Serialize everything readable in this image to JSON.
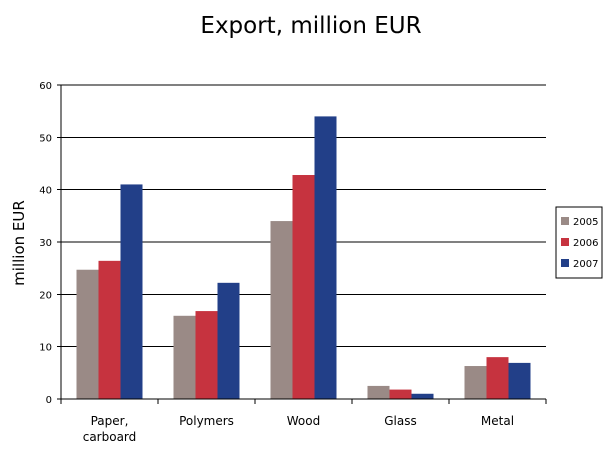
{
  "chart_data": {
    "type": "bar",
    "title": "Export, million EUR",
    "xlabel": "",
    "ylabel": "million EUR",
    "ylim": [
      0,
      60
    ],
    "yticks": [
      0,
      10,
      20,
      30,
      40,
      50,
      60
    ],
    "grid": true,
    "legend_position": "right",
    "categories": [
      [
        "Paper,",
        "carboard"
      ],
      [
        "Polymers"
      ],
      [
        "Wood"
      ],
      [
        "Glass"
      ],
      [
        "Metal"
      ]
    ],
    "series": [
      {
        "name": "2005",
        "color": "#9a8a86",
        "values": [
          24.7,
          15.9,
          34.0,
          2.5,
          6.3
        ]
      },
      {
        "name": "2006",
        "color": "#c6333f",
        "values": [
          26.4,
          16.8,
          42.8,
          1.8,
          8.0
        ]
      },
      {
        "name": "2007",
        "color": "#223f88",
        "values": [
          41.0,
          22.2,
          54.0,
          1.0,
          6.9
        ]
      }
    ]
  }
}
